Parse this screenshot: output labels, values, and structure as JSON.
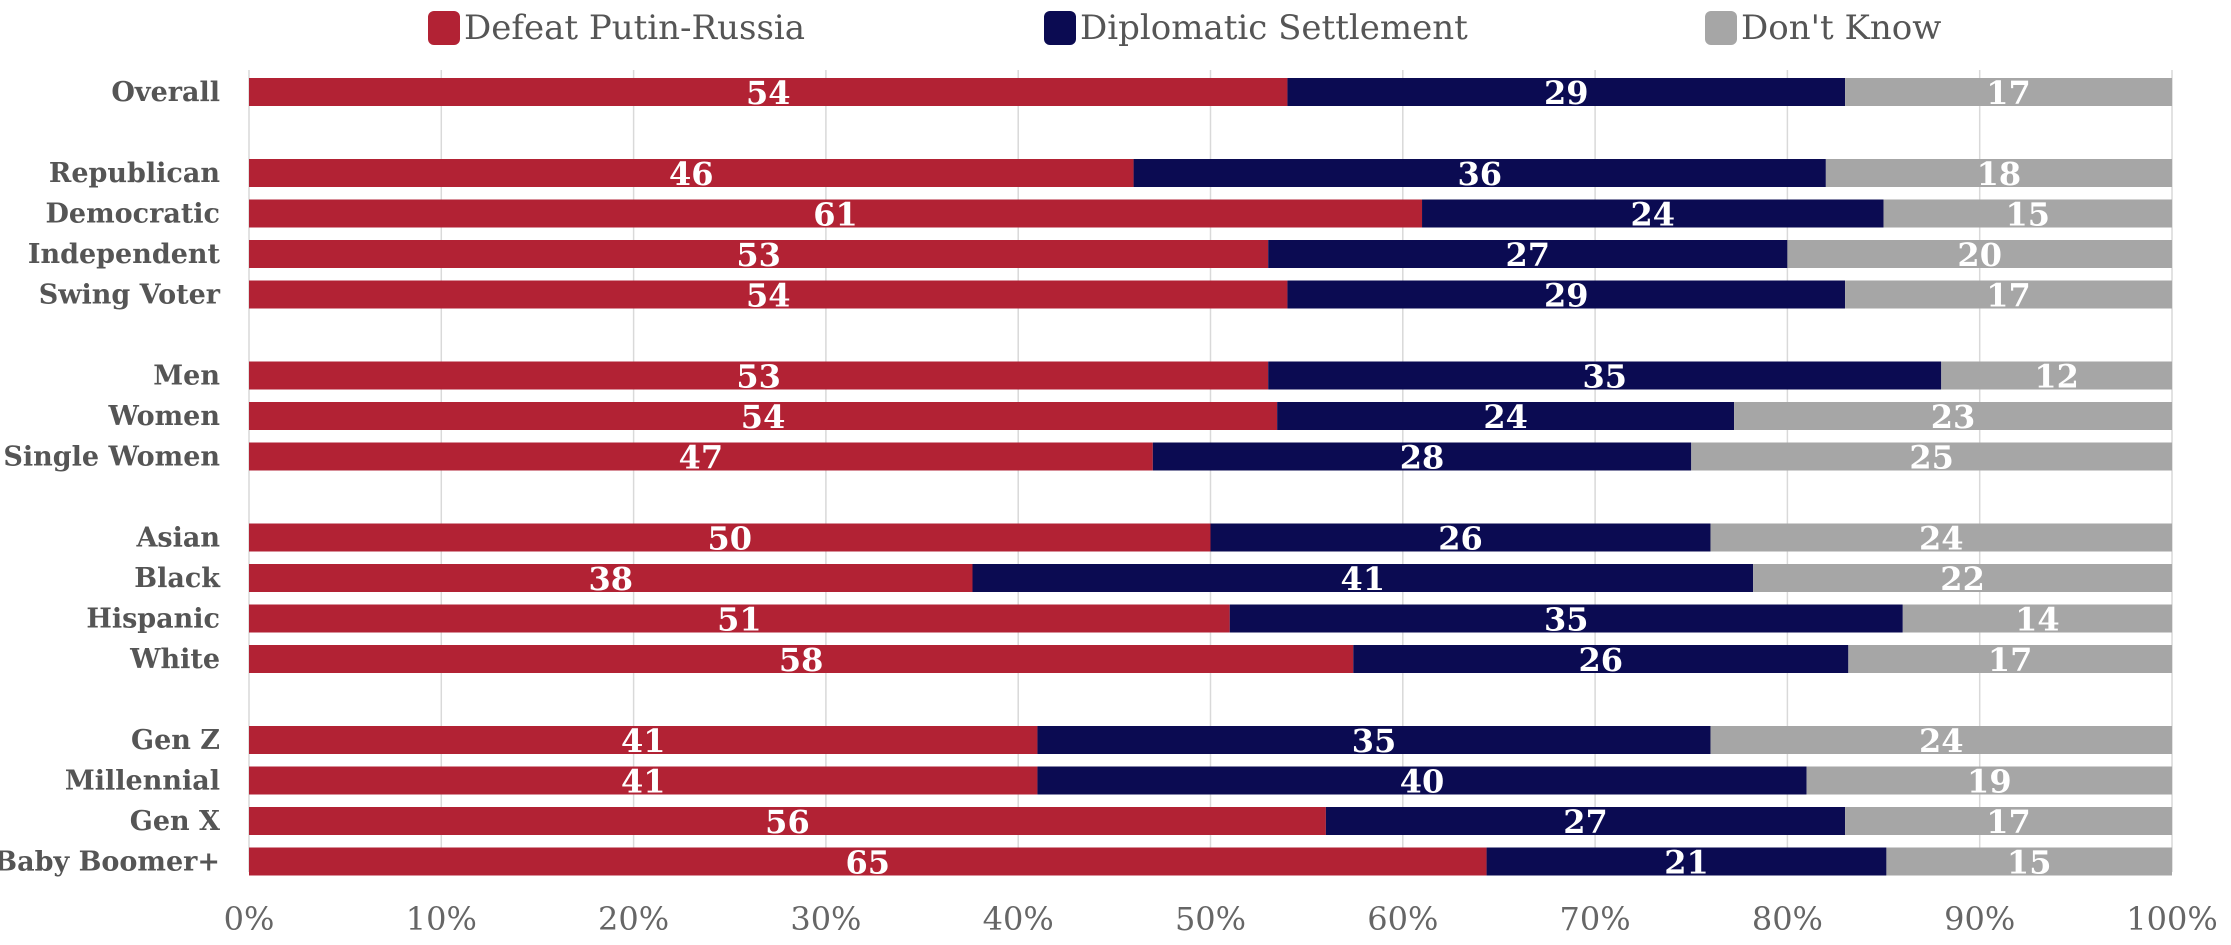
{
  "chart_data": {
    "type": "bar",
    "orientation": "horizontal",
    "stacked": true,
    "categories": [
      "Overall",
      "Republican",
      "Democratic",
      "Independent",
      "Swing Voter",
      "Men",
      "Women",
      "Single Women",
      "Asian",
      "Black",
      "Hispanic",
      "White",
      "Gen Z",
      "Millennial",
      "Gen X",
      "Baby Boomer+"
    ],
    "groups": [
      [
        "Overall"
      ],
      [
        "Republican",
        "Democratic",
        "Independent",
        "Swing Voter"
      ],
      [
        "Men",
        "Women",
        "Single Women"
      ],
      [
        "Asian",
        "Black",
        "Hispanic",
        "White"
      ],
      [
        "Gen Z",
        "Millennial",
        "Gen X",
        "Baby Boomer+"
      ]
    ],
    "series": [
      {
        "name": "Defeat Putin-Russia",
        "color": "#b22234",
        "values": [
          54,
          46,
          61,
          53,
          54,
          53,
          54,
          47,
          50,
          38,
          51,
          58,
          41,
          41,
          56,
          65
        ]
      },
      {
        "name": "Diplomatic Settlement",
        "color": "#0b0b52",
        "values": [
          29,
          36,
          24,
          27,
          29,
          35,
          24,
          28,
          26,
          41,
          35,
          26,
          35,
          40,
          27,
          21
        ]
      },
      {
        "name": "Don't Know",
        "color": "#a6a6a6",
        "values": [
          17,
          18,
          15,
          20,
          17,
          12,
          23,
          25,
          24,
          22,
          14,
          17,
          24,
          19,
          17,
          15
        ]
      }
    ],
    "xaxis": {
      "ticks": [
        "0%",
        "10%",
        "20%",
        "30%",
        "40%",
        "50%",
        "60%",
        "70%",
        "80%",
        "90%",
        "100%"
      ],
      "range": [
        0,
        100
      ]
    },
    "legend_position": "top",
    "grid": true,
    "title": "",
    "xlabel": "",
    "ylabel": ""
  }
}
